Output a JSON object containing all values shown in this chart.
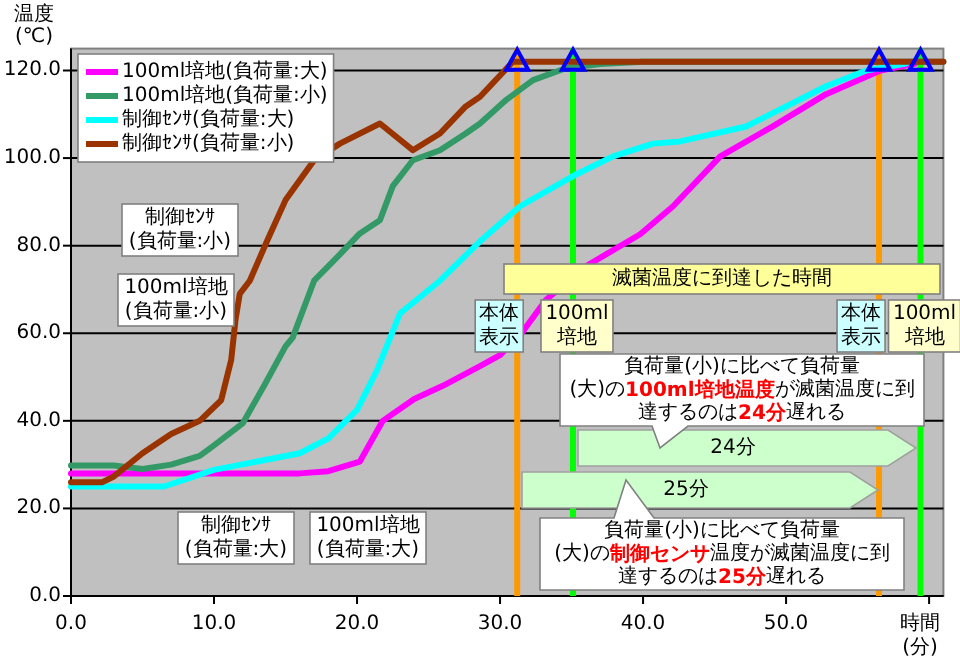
{
  "chart_data": {
    "type": "line",
    "xlabel": "時間\n(分)",
    "ylabel": "温度\n(℃)",
    "xlim": [
      0,
      61
    ],
    "ylim": [
      0,
      125
    ],
    "xticks": [
      {
        "value": 0,
        "label": "0.0"
      },
      {
        "value": 10,
        "label": "10.0"
      },
      {
        "value": 20,
        "label": "20.0"
      },
      {
        "value": 30,
        "label": "30.0"
      },
      {
        "value": 40,
        "label": "40.0"
      },
      {
        "value": 50,
        "label": "50.0"
      },
      {
        "value": 60,
        "label": null
      }
    ],
    "yticks": [
      {
        "value": 0,
        "label": "0.0"
      },
      {
        "value": 20,
        "label": "20.0"
      },
      {
        "value": 40,
        "label": "40.0"
      },
      {
        "value": 60,
        "label": "60.0"
      },
      {
        "value": 80,
        "label": "80.0"
      },
      {
        "value": 100,
        "label": "100.0"
      },
      {
        "value": 120,
        "label": "120.0"
      }
    ],
    "grid": "y",
    "legend": "top left",
    "series": [
      {
        "name": "100ml培地(負荷量:大)",
        "color": "#ff00ff",
        "x": [
          0,
          5,
          10,
          16,
          18,
          20.2,
          21.8,
          24,
          26,
          28.6,
          30,
          31.5,
          33.2,
          36,
          39.8,
          42.1,
          45.4,
          49.1,
          52.8,
          56.6,
          59
        ],
        "values": [
          28,
          28,
          28,
          28,
          28.5,
          30.7,
          40,
          45,
          48,
          52.5,
          55,
          60,
          67.6,
          75.3,
          82.6,
          89,
          100.4,
          107.3,
          114.6,
          120,
          121.5
        ]
      },
      {
        "name": "100ml培地(負荷量:小)",
        "color": "#339966",
        "x": [
          0,
          3,
          5,
          7,
          9,
          10,
          12,
          13.5,
          15,
          15.5,
          17,
          18.8,
          20.2,
          21.6,
          22.5,
          23.9,
          25.8,
          27.6,
          28.6,
          30.4,
          32.3,
          34.6,
          37,
          40,
          61
        ],
        "values": [
          29.8,
          29.8,
          29,
          30,
          32,
          34.4,
          39.4,
          48,
          57,
          59,
          72,
          78,
          82.8,
          85.8,
          93.6,
          99.5,
          101.8,
          105.6,
          107.9,
          113.2,
          117.8,
          120.5,
          121.5,
          122,
          122
        ]
      },
      {
        "name": "制御ｾﾝｻ(負荷量:大)",
        "color": "#00ffff",
        "x": [
          0,
          6.5,
          10,
          16,
          18,
          20,
          21.4,
          23,
          25.8,
          28.6,
          31.4,
          35.1,
          37.9,
          40.7,
          42.6,
          47.2,
          50,
          52.8,
          55.6,
          58.4
        ],
        "values": [
          25,
          25,
          28.8,
          32.6,
          36,
          42.5,
          51.6,
          64.5,
          72,
          81,
          89,
          95.9,
          100.4,
          103.3,
          103.8,
          107.2,
          111.8,
          116.4,
          120,
          121.6
        ]
      },
      {
        "name": "制御ｾﾝｻ(負荷量:小)",
        "color": "#993300",
        "x": [
          0,
          2.2,
          3,
          5,
          7,
          9,
          10.5,
          11.2,
          11.5,
          11.8,
          12.5,
          13.7,
          15,
          17,
          18.8,
          21.6,
          23.9,
          25.8,
          27.6,
          28.6,
          30.9,
          61
        ],
        "values": [
          26,
          26,
          27.3,
          32.6,
          37,
          40,
          44.7,
          53.9,
          63,
          69,
          72,
          81,
          90.4,
          99.5,
          103.3,
          107.9,
          101.8,
          105.6,
          111.8,
          114,
          122,
          122
        ]
      },
      {
        "type": "scatter",
        "marker": "triangle",
        "color": "#0000ff",
        "x": [
          31.2,
          35.1,
          56.5,
          59.4
        ],
        "values": [
          122,
          122,
          122,
          122
        ]
      }
    ],
    "ref_lines": [
      {
        "axis": "x",
        "value": 31.2,
        "label": "本体表示",
        "color": "#ff9900"
      },
      {
        "axis": "x",
        "value": 35.1,
        "label": "100ml培地",
        "color": "#00ff00"
      },
      {
        "axis": "x",
        "value": 56.5,
        "label": "本体表示",
        "color": "#ff9900"
      },
      {
        "axis": "x",
        "value": 59.4,
        "label": "100ml培地",
        "color": "#00ff00"
      }
    ],
    "annotations": [
      "制御ｾﾝｻ(負荷量:小)",
      "100ml培地(負荷量:小)",
      "制御ｾﾝｻ(負荷量:大)",
      "100ml培地(負荷量:大)",
      "滅菌温度に到達した時間",
      "24分",
      "25分",
      "負荷量(小)に比べて負荷量(大)の**100ml培地温度**が滅菌温度に到達するのは**24分**遅れる",
      "負荷量(小)に比べて負荷量(大)の**制御センサ**温度が滅菌温度に到達するのは**25分**遅れる"
    ]
  }
}
